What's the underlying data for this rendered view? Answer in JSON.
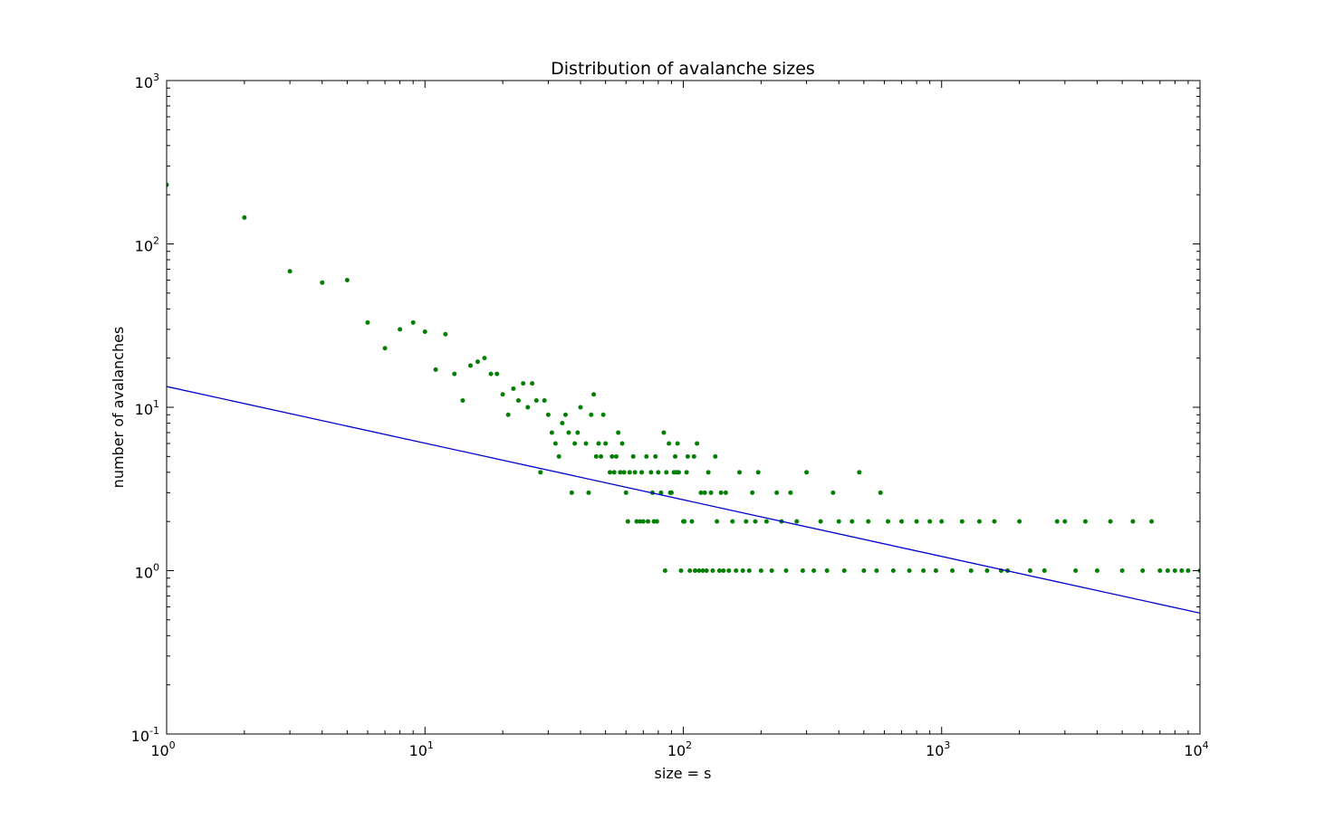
{
  "chart_data": {
    "type": "scatter",
    "title": "Distribution of avalanche sizes",
    "xlabel": "size = s",
    "ylabel": "number of avalanches",
    "xscale": "log",
    "yscale": "log",
    "xlim": [
      1,
      10000
    ],
    "ylim": [
      0.1,
      1000
    ],
    "grid": false,
    "legend": "none",
    "x_ticks": [
      {
        "base": "10",
        "exp": "0",
        "value": 1
      },
      {
        "base": "10",
        "exp": "1",
        "value": 10
      },
      {
        "base": "10",
        "exp": "2",
        "value": 100
      },
      {
        "base": "10",
        "exp": "3",
        "value": 1000
      },
      {
        "base": "10",
        "exp": "4",
        "value": 10000
      }
    ],
    "y_ticks": [
      {
        "base": "10",
        "exp": "-1",
        "value": 0.1
      },
      {
        "base": "10",
        "exp": "0",
        "value": 1
      },
      {
        "base": "10",
        "exp": "1",
        "value": 10
      },
      {
        "base": "10",
        "exp": "2",
        "value": 100
      },
      {
        "base": "10",
        "exp": "3",
        "value": 1000
      }
    ],
    "series": [
      {
        "kind": "scatter",
        "color": "#007f00",
        "points": [
          [
            1,
            230
          ],
          [
            2,
            145
          ],
          [
            3,
            68
          ],
          [
            4,
            58
          ],
          [
            5,
            60
          ],
          [
            6,
            33
          ],
          [
            7,
            23
          ],
          [
            8,
            30
          ],
          [
            9,
            33
          ],
          [
            10,
            29
          ],
          [
            11,
            17
          ],
          [
            12,
            28
          ],
          [
            13,
            16
          ],
          [
            14,
            11
          ],
          [
            15,
            18
          ],
          [
            16,
            19
          ],
          [
            17,
            20
          ],
          [
            18,
            16
          ],
          [
            19,
            16
          ],
          [
            20,
            12
          ],
          [
            21,
            9
          ],
          [
            22,
            13
          ],
          [
            23,
            11
          ],
          [
            24,
            14
          ],
          [
            25,
            10
          ],
          [
            26,
            14
          ],
          [
            27,
            11
          ],
          [
            28,
            4
          ],
          [
            29,
            11
          ],
          [
            30,
            9
          ],
          [
            31,
            7
          ],
          [
            32,
            6
          ],
          [
            33,
            5
          ],
          [
            34,
            8
          ],
          [
            35,
            9
          ],
          [
            36,
            7
          ],
          [
            37,
            3
          ],
          [
            38,
            6
          ],
          [
            39,
            7
          ],
          [
            40,
            10
          ],
          [
            42,
            6
          ],
          [
            43,
            3
          ],
          [
            44,
            9
          ],
          [
            45,
            12
          ],
          [
            46,
            5
          ],
          [
            47,
            6
          ],
          [
            48,
            5
          ],
          [
            49,
            9
          ],
          [
            50,
            6
          ],
          [
            52,
            4
          ],
          [
            53,
            5
          ],
          [
            54,
            4
          ],
          [
            55,
            5
          ],
          [
            56,
            7
          ],
          [
            57,
            4
          ],
          [
            58,
            6
          ],
          [
            59,
            4
          ],
          [
            60,
            3
          ],
          [
            61,
            2
          ],
          [
            62,
            4
          ],
          [
            64,
            5
          ],
          [
            65,
            4
          ],
          [
            66,
            2
          ],
          [
            68,
            2
          ],
          [
            69,
            4
          ],
          [
            70,
            2
          ],
          [
            72,
            5
          ],
          [
            73,
            2
          ],
          [
            75,
            4
          ],
          [
            76,
            3
          ],
          [
            77,
            2
          ],
          [
            78,
            5
          ],
          [
            79,
            2
          ],
          [
            80,
            4
          ],
          [
            82,
            3
          ],
          [
            84,
            7
          ],
          [
            85,
            1
          ],
          [
            86,
            4
          ],
          [
            88,
            6
          ],
          [
            89,
            3
          ],
          [
            90,
            3
          ],
          [
            92,
            4
          ],
          [
            93,
            5
          ],
          [
            94,
            4
          ],
          [
            95,
            6
          ],
          [
            96,
            4
          ],
          [
            98,
            1
          ],
          [
            100,
            2
          ],
          [
            101,
            2
          ],
          [
            103,
            4
          ],
          [
            104,
            5
          ],
          [
            106,
            1
          ],
          [
            108,
            2
          ],
          [
            110,
            5
          ],
          [
            111,
            1
          ],
          [
            113,
            6
          ],
          [
            115,
            1
          ],
          [
            117,
            3
          ],
          [
            119,
            1
          ],
          [
            121,
            3
          ],
          [
            123,
            1
          ],
          [
            125,
            4
          ],
          [
            128,
            3
          ],
          [
            130,
            1
          ],
          [
            133,
            5
          ],
          [
            135,
            2
          ],
          [
            138,
            1
          ],
          [
            140,
            3
          ],
          [
            143,
            1
          ],
          [
            146,
            3
          ],
          [
            150,
            1
          ],
          [
            155,
            2
          ],
          [
            160,
            1
          ],
          [
            165,
            4
          ],
          [
            170,
            1
          ],
          [
            175,
            2
          ],
          [
            180,
            1
          ],
          [
            185,
            3
          ],
          [
            190,
            2
          ],
          [
            195,
            4
          ],
          [
            200,
            1
          ],
          [
            210,
            2
          ],
          [
            220,
            1
          ],
          [
            230,
            3
          ],
          [
            240,
            2
          ],
          [
            250,
            1
          ],
          [
            260,
            3
          ],
          [
            275,
            2
          ],
          [
            290,
            1
          ],
          [
            300,
            4
          ],
          [
            320,
            1
          ],
          [
            340,
            2
          ],
          [
            360,
            1
          ],
          [
            380,
            3
          ],
          [
            400,
            2
          ],
          [
            420,
            1
          ],
          [
            450,
            2
          ],
          [
            480,
            4
          ],
          [
            500,
            1
          ],
          [
            520,
            2
          ],
          [
            560,
            1
          ],
          [
            580,
            3
          ],
          [
            620,
            2
          ],
          [
            650,
            1
          ],
          [
            700,
            2
          ],
          [
            750,
            1
          ],
          [
            800,
            2
          ],
          [
            850,
            1
          ],
          [
            900,
            2
          ],
          [
            950,
            1
          ],
          [
            1000,
            2
          ],
          [
            1100,
            1
          ],
          [
            1200,
            2
          ],
          [
            1300,
            1
          ],
          [
            1400,
            2
          ],
          [
            1500,
            1
          ],
          [
            1600,
            2
          ],
          [
            1700,
            1
          ],
          [
            1800,
            1
          ],
          [
            2000,
            2
          ],
          [
            2200,
            1
          ],
          [
            2500,
            1
          ],
          [
            2800,
            2
          ],
          [
            3000,
            2
          ],
          [
            3300,
            1
          ],
          [
            3600,
            2
          ],
          [
            4000,
            1
          ],
          [
            4500,
            2
          ],
          [
            5000,
            1
          ],
          [
            5500,
            2
          ],
          [
            6000,
            1
          ],
          [
            6500,
            2
          ],
          [
            7000,
            1
          ],
          [
            7500,
            1
          ],
          [
            8000,
            1
          ],
          [
            8500,
            1
          ],
          [
            9000,
            1
          ],
          [
            10000,
            1
          ]
        ]
      },
      {
        "kind": "line",
        "color": "#0000cc",
        "points": [
          [
            1,
            13.4
          ],
          [
            10000,
            0.55
          ]
        ]
      }
    ]
  }
}
